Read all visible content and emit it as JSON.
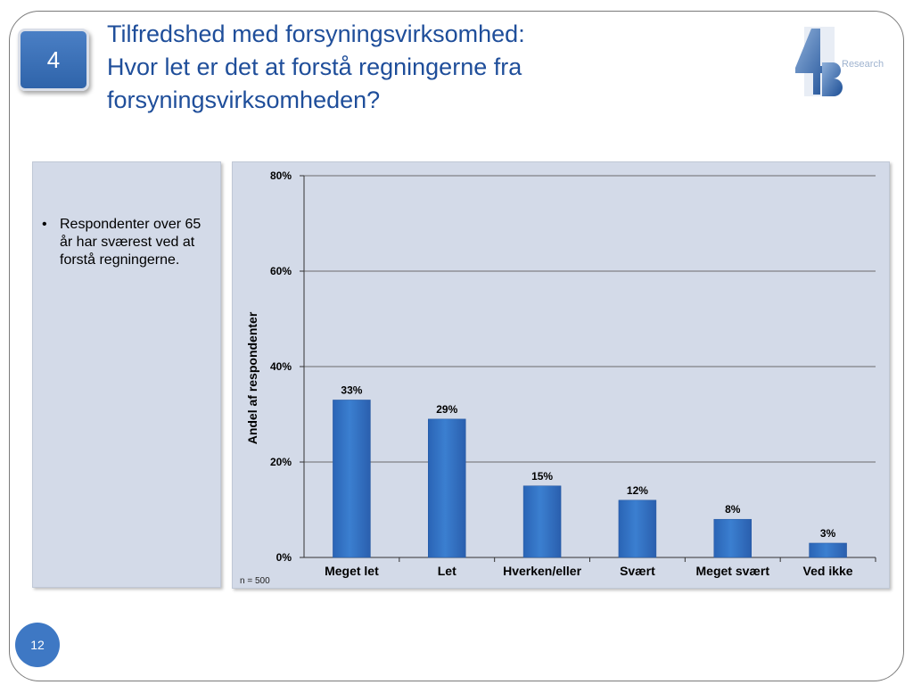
{
  "slide": {
    "badge": "4",
    "title_lines": [
      "Tilfredshed med forsyningsvirksomhed:",
      "Hvor let er det at forstå regningerne fra",
      "forsyningsvirksomheden?"
    ],
    "logo_text": "Research",
    "bullet": "Respondenter over 65 år har sværest ved at forstå regningerne.",
    "page_number": "12"
  },
  "chart_data": {
    "type": "bar",
    "categories": [
      "Meget let",
      "Let",
      "Hverken/eller",
      "Svært",
      "Meget svært",
      "Ved ikke"
    ],
    "values": [
      33,
      29,
      15,
      12,
      8,
      3
    ],
    "value_labels": [
      "33%",
      "29%",
      "15%",
      "12%",
      "8%",
      "3%"
    ],
    "title": "",
    "xlabel": "",
    "ylabel": "Andel af respondenter",
    "ylim": [
      0,
      80
    ],
    "yticks": [
      0,
      20,
      40,
      60,
      80
    ],
    "ytick_labels": [
      "0%",
      "20%",
      "40%",
      "60%",
      "80%"
    ],
    "grid": true,
    "note": "n = 500",
    "bar_color": "#3b7fd0"
  }
}
